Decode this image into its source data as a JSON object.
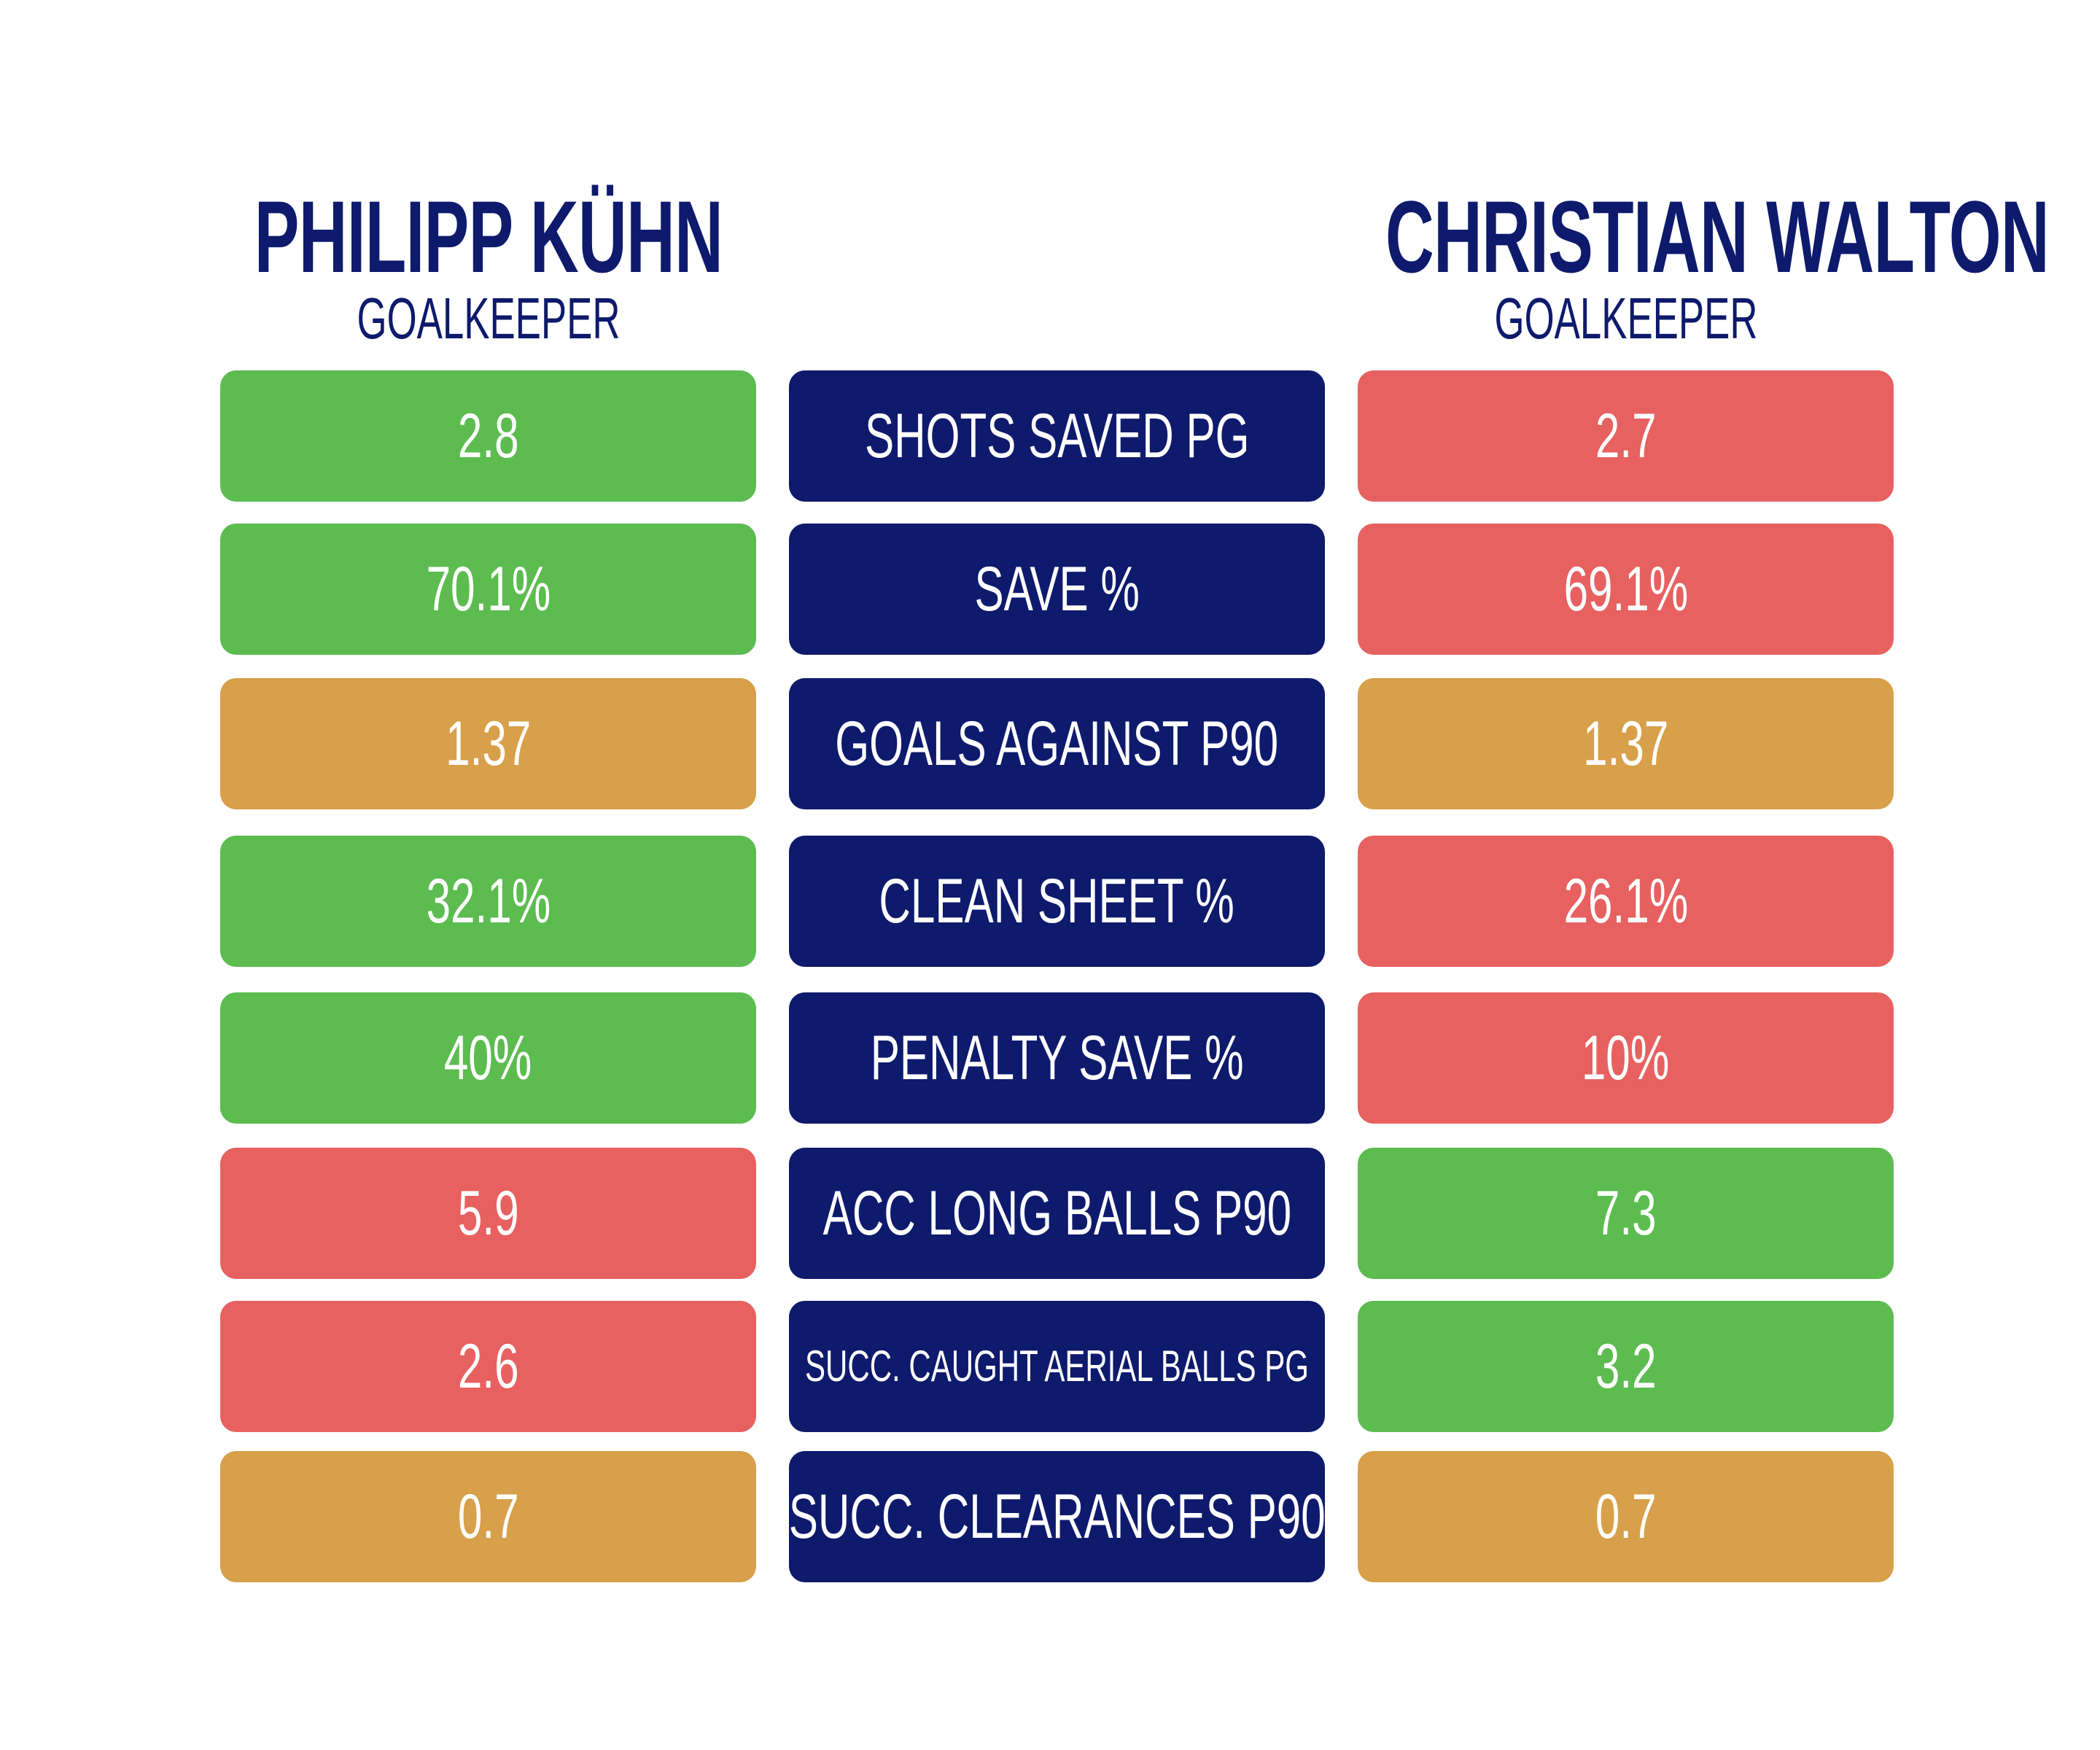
{
  "players": {
    "left": {
      "name": "PHILIPP KÜHN",
      "position": "GOALKEEPER"
    },
    "right": {
      "name": "CHRISTIAN WALTON",
      "position": "GOALKEEPER"
    }
  },
  "colors": {
    "better": "#5cbc50",
    "worse": "#e76161",
    "equal": "#d8a04a",
    "label": "#0e1a6c"
  },
  "stats": [
    {
      "label": "SHOTS SAVED PG",
      "left": "2.8",
      "right": "2.7",
      "left_status": "better",
      "right_status": "worse"
    },
    {
      "label": "SAVE %",
      "left": "70.1%",
      "right": "69.1%",
      "left_status": "better",
      "right_status": "worse"
    },
    {
      "label": "GOALS AGAINST P90",
      "left": "1.37",
      "right": "1.37",
      "left_status": "equal",
      "right_status": "equal"
    },
    {
      "label": "CLEAN SHEET %",
      "left": "32.1%",
      "right": "26.1%",
      "left_status": "better",
      "right_status": "worse"
    },
    {
      "label": "PENALTY SAVE %",
      "left": "40%",
      "right": "10%",
      "left_status": "better",
      "right_status": "worse"
    },
    {
      "label": "ACC LONG BALLS P90",
      "left": "5.9",
      "right": "7.3",
      "left_status": "worse",
      "right_status": "better"
    },
    {
      "label": "SUCC. CAUGHT AERIAL BALLS PG",
      "left": "2.6",
      "right": "3.2",
      "left_status": "worse",
      "right_status": "better"
    },
    {
      "label": "SUCC. CLEARANCES P90",
      "left": "0.7",
      "right": "0.7",
      "left_status": "equal",
      "right_status": "equal"
    }
  ]
}
